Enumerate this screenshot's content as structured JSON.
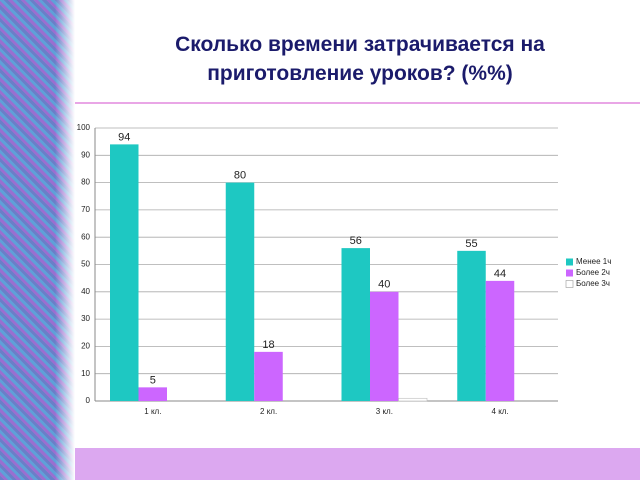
{
  "chart_data": {
    "type": "bar",
    "title": "Сколько времени затрачивается на приготовление уроков? (%%)",
    "categories": [
      "1 кл.",
      "2 кл.",
      "3 кл.",
      "4 кл."
    ],
    "series": [
      {
        "name": "Менее 1ч",
        "color": "#1ec8c2",
        "values": [
          94,
          80,
          56,
          55
        ],
        "labels": true
      },
      {
        "name": "Более 2ч",
        "color": "#cc66ff",
        "values": [
          5,
          18,
          40,
          44
        ],
        "labels": true
      },
      {
        "name": "Более 3ч",
        "color": "#ffffff",
        "values": [
          0,
          0,
          1,
          0
        ],
        "labels": false
      }
    ],
    "ylim": [
      0,
      100
    ],
    "yticks": [
      0,
      10,
      20,
      30,
      40,
      50,
      60,
      70,
      80,
      90,
      100
    ],
    "grid": true,
    "legend": "right"
  }
}
